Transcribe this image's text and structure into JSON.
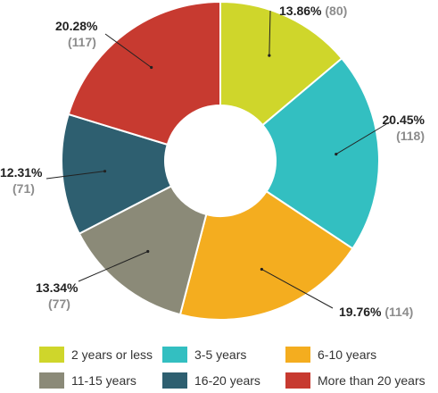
{
  "chart_data": {
    "type": "pie",
    "donut": true,
    "categories": [
      "2 years or less",
      "3-5 years",
      "6-10 years",
      "11-15 years",
      "16-20 years",
      "More than 20 years"
    ],
    "values": [
      80,
      118,
      114,
      77,
      71,
      117
    ],
    "percent_labels": [
      "13.86%",
      "20.45%",
      "19.76%",
      "13.34%",
      "12.31%",
      "20.28%"
    ],
    "count_labels": [
      "(80)",
      "(118)",
      "(114)",
      "(77)",
      "(71)",
      "(117)"
    ],
    "colors": [
      "#cfd62b",
      "#33bfc1",
      "#f4ad1f",
      "#8b8a78",
      "#2e5f70",
      "#c73a30"
    ],
    "legend_position": "bottom"
  }
}
